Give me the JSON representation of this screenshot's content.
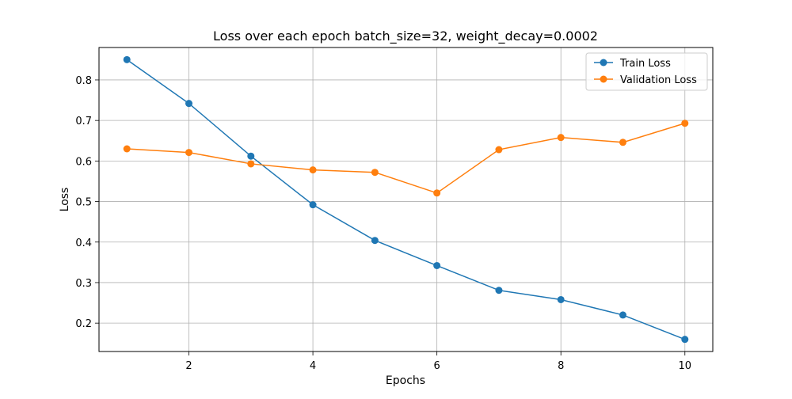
{
  "chart_data": {
    "type": "line",
    "title": "Loss over each epoch batch_size=32, weight_decay=0.0002",
    "xlabel": "Epochs",
    "ylabel": "Loss",
    "xlim": [
      0.55,
      10.45
    ],
    "ylim": [
      0.13,
      0.88
    ],
    "xticks": [
      2,
      4,
      6,
      8,
      10
    ],
    "yticks": [
      0.2,
      0.3,
      0.4,
      0.5,
      0.6,
      0.7,
      0.8
    ],
    "xtick_labels": [
      "2",
      "4",
      "6",
      "8",
      "10"
    ],
    "ytick_labels": [
      "0.2",
      "0.3",
      "0.4",
      "0.5",
      "0.6",
      "0.7",
      "0.8"
    ],
    "grid": true,
    "legend_position": "top-right",
    "x": [
      1,
      2,
      3,
      4,
      5,
      6,
      7,
      8,
      9,
      10
    ],
    "series": [
      {
        "name": "Train Loss",
        "color": "#1f77b4",
        "values": [
          0.85,
          0.742,
          0.612,
          0.492,
          0.404,
          0.342,
          0.281,
          0.258,
          0.22,
          0.16
        ]
      },
      {
        "name": "Validation Loss",
        "color": "#ff7f0e",
        "values": [
          0.63,
          0.621,
          0.593,
          0.578,
          0.572,
          0.521,
          0.628,
          0.658,
          0.646,
          0.693
        ]
      }
    ]
  }
}
